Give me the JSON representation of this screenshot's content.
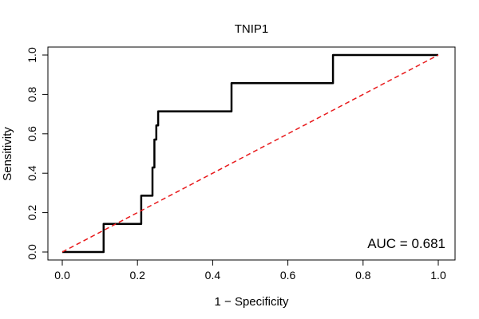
{
  "chart_data": {
    "type": "line",
    "title": "TNIP1",
    "xlabel": "1 − Specificity",
    "ylabel": "Sensitivity",
    "xlim": [
      0.0,
      1.0
    ],
    "ylim": [
      0.0,
      1.0
    ],
    "x_ticks": [
      0.0,
      0.2,
      0.4,
      0.6,
      0.8,
      1.0
    ],
    "x_tick_labels": [
      "0.0",
      "0.2",
      "0.4",
      "0.6",
      "0.8",
      "1.0"
    ],
    "y_ticks": [
      0.0,
      0.2,
      0.4,
      0.6,
      0.8,
      1.0
    ],
    "y_tick_labels": [
      "0.0",
      "0.2",
      "0.4",
      "0.6",
      "0.8",
      "1.0"
    ],
    "grid": false,
    "series": [
      {
        "name": "ROC curve",
        "color": "#000000",
        "style": "solid",
        "x": [
          0.0,
          0.11,
          0.11,
          0.21,
          0.21,
          0.24,
          0.24,
          0.245,
          0.245,
          0.25,
          0.25,
          0.255,
          0.255,
          0.45,
          0.45,
          0.72,
          0.72,
          1.0
        ],
        "y": [
          0.0,
          0.0,
          0.143,
          0.143,
          0.286,
          0.286,
          0.429,
          0.429,
          0.571,
          0.571,
          0.643,
          0.643,
          0.714,
          0.714,
          0.857,
          0.857,
          1.0,
          1.0
        ]
      },
      {
        "name": "Reference diagonal",
        "color": "#e8191b",
        "style": "dashed",
        "x": [
          0.0,
          1.0
        ],
        "y": [
          0.0,
          1.0
        ]
      }
    ],
    "annotations": [
      {
        "text": "AUC = 0.681",
        "position": "bottom-right"
      }
    ]
  }
}
